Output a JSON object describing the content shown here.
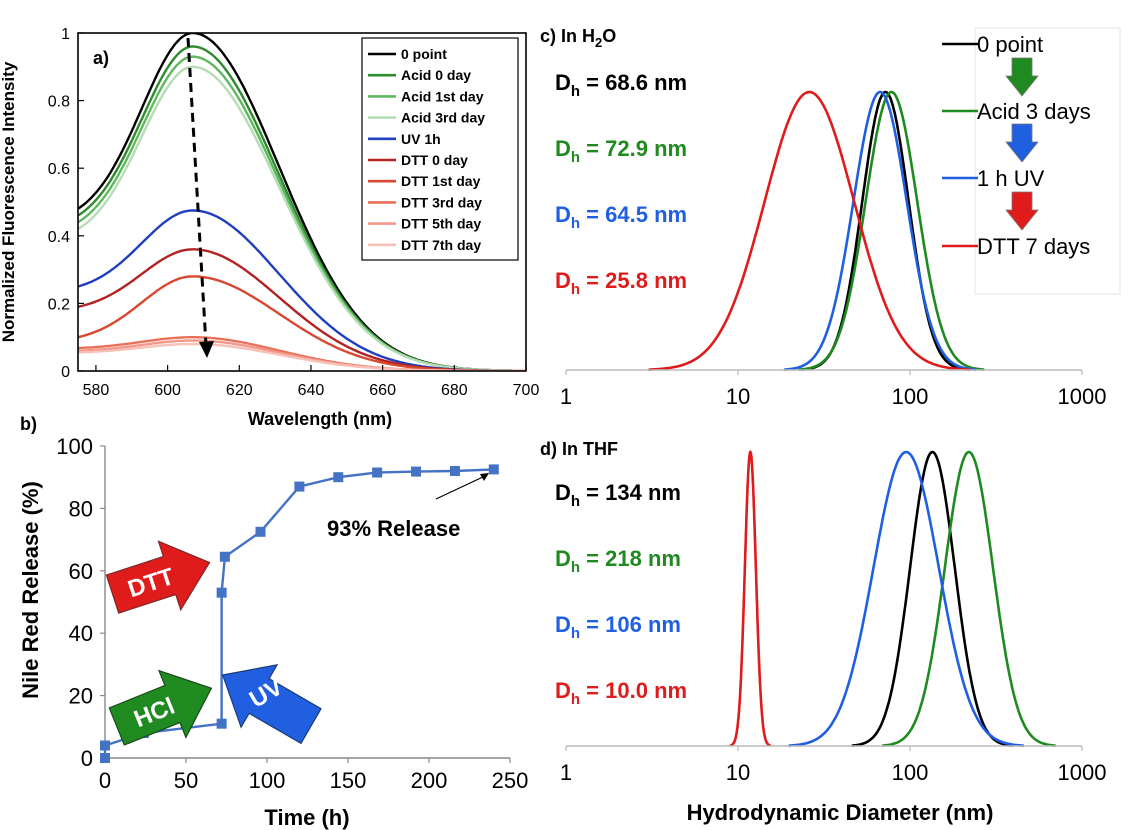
{
  "colors": {
    "black": "#000000",
    "green": "#1f8a1f",
    "blue": "#1f5fe0",
    "red": "#e01b1b",
    "series_blue": "#4472c4"
  },
  "chart_data": [
    {
      "panel_label": "a)",
      "type": "line",
      "xlabel": "Wavelength (nm)",
      "ylabel": "Normalized Fluorescence Intensity",
      "xlim": [
        575,
        700
      ],
      "ylim": [
        0,
        1
      ],
      "xticks": [
        "580",
        "600",
        "620",
        "640",
        "660",
        "680",
        "700"
      ],
      "yticks": [
        "0",
        "0.2",
        "0.4",
        "0.6",
        "0.8",
        "1"
      ],
      "legend_position": "top-right",
      "peak_x": 607,
      "width_left": 20,
      "width_right": 34,
      "series": [
        {
          "name": "0 point",
          "color": "#000000",
          "peak": 1.0,
          "start": 0.48
        },
        {
          "name": "Acid 0 day",
          "color": "#2e8b2e",
          "peak": 0.96,
          "start": 0.46
        },
        {
          "name": "Acid 1st day",
          "color": "#5fb85f",
          "peak": 0.93,
          "start": 0.44
        },
        {
          "name": "Acid 3rd day",
          "color": "#b5ddb5",
          "peak": 0.9,
          "start": 0.42
        },
        {
          "name": "UV 1h",
          "color": "#1f3fbf",
          "peak": 0.475,
          "start": 0.25
        },
        {
          "name": "DTT 0 day",
          "color": "#b22222",
          "peak": 0.36,
          "start": 0.19
        },
        {
          "name": "DTT 1st day",
          "color": "#d8472f",
          "peak": 0.28,
          "start": 0.1
        },
        {
          "name": "DTT 3rd day",
          "color": "#e9705a",
          "peak": 0.1,
          "start": 0.068
        },
        {
          "name": "DTT 5th day",
          "color": "#f2988a",
          "peak": 0.09,
          "start": 0.06
        },
        {
          "name": "DTT 7th day",
          "color": "#f8c0b6",
          "peak": 0.08,
          "start": 0.055
        }
      ]
    },
    {
      "panel_label": "b)",
      "type": "line",
      "xlabel": "Time (h)",
      "ylabel": "Nile Red Release (%)",
      "xlim": [
        0,
        250
      ],
      "ylim": [
        0,
        100
      ],
      "xticks": [
        "0",
        "50",
        "100",
        "150",
        "200",
        "250"
      ],
      "yticks": [
        "0",
        "20",
        "40",
        "60",
        "80",
        "100"
      ],
      "x": [
        0,
        0,
        24,
        72,
        72,
        74,
        96,
        120,
        144,
        168,
        192,
        216,
        240
      ],
      "y": [
        0,
        4,
        8,
        11,
        53,
        64.5,
        72.5,
        87,
        90,
        91.5,
        91.8,
        92,
        92.5
      ],
      "annotations": [
        {
          "text": "93% Release",
          "x": 240,
          "y": 92.5
        },
        {
          "text": "DTT",
          "color": "#e01b1b"
        },
        {
          "text": "HCl",
          "color": "#1f8a1f"
        },
        {
          "text": "UV",
          "color": "#1f5fe0"
        }
      ]
    },
    {
      "panel_label": "c) In H",
      "panel_sub": "2",
      "panel_suffix": "O",
      "type": "line",
      "xscale": "log",
      "xlim": [
        1,
        1000
      ],
      "xticks": [
        "1",
        "10",
        "100",
        "1000"
      ],
      "legend_position": "top-right",
      "series": [
        {
          "name": "0 point",
          "color": "#000000",
          "mode": 72,
          "sigma": 0.135,
          "dh_label": "D",
          "dh_sub": "h",
          "dh_value": " = 68.6 nm"
        },
        {
          "name": "Acid 3 days",
          "color": "#1f8a1f",
          "mode": 78,
          "sigma": 0.15,
          "dh_label": "D",
          "dh_sub": "h",
          "dh_value": " = 72.9 nm"
        },
        {
          "name": "1 h UV",
          "color": "#1f5fe0",
          "mode": 67,
          "sigma": 0.155,
          "dh_label": "D",
          "dh_sub": "h",
          "dh_value": " = 64.5 nm"
        },
        {
          "name": "DTT 7 days",
          "color": "#e01b1b",
          "mode": 26,
          "sigma": 0.26,
          "dh_label": "D",
          "dh_sub": "h",
          "dh_value": " = 25.8 nm"
        }
      ]
    },
    {
      "panel_label": "d) In THF",
      "type": "line",
      "xscale": "log",
      "xlabel": "Hydrodynamic Diameter (nm)",
      "xlim": [
        1,
        1000
      ],
      "xticks": [
        "1",
        "10",
        "100",
        "1000"
      ],
      "series": [
        {
          "name": "0 point",
          "color": "#000000",
          "mode": 135,
          "sigma": 0.13,
          "dh_label": "D",
          "dh_sub": "h",
          "dh_value": " = 134 nm"
        },
        {
          "name": "Acid 3 days",
          "color": "#1f8a1f",
          "mode": 220,
          "sigma": 0.14,
          "dh_label": "D",
          "dh_sub": "h",
          "dh_value": " = 218 nm"
        },
        {
          "name": "1 h UV",
          "color": "#1f5fe0",
          "mode": 95,
          "sigma": 0.19,
          "dh_label": "D",
          "dh_sub": "h",
          "dh_value": " = 106 nm"
        },
        {
          "name": "DTT 7 days",
          "color": "#e01b1b",
          "mode": 11.8,
          "sigma": 0.032,
          "dh_label": "D",
          "dh_sub": "h",
          "dh_value": " = 10.0 nm"
        }
      ]
    }
  ]
}
